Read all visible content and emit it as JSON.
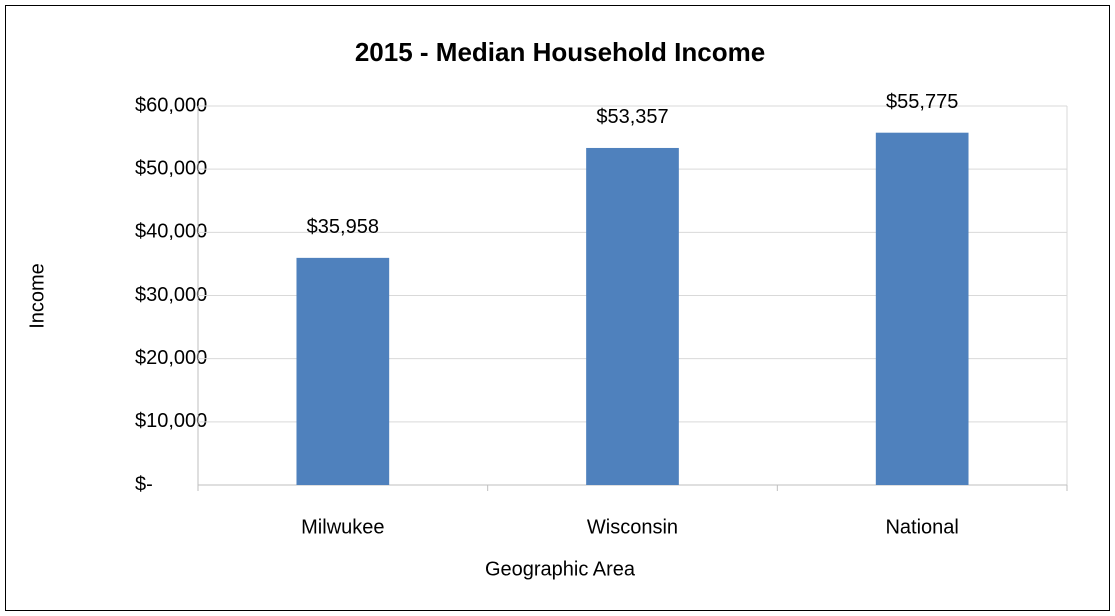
{
  "chart_data": {
    "type": "bar",
    "title": "2015 - Median Household Income",
    "x_label": "Geographic Area",
    "y_label": "Income",
    "categories": [
      "Milwukee",
      "Wisconsin",
      "National"
    ],
    "values": [
      35958,
      53357,
      55775
    ],
    "value_labels": [
      "$35,958",
      "$53,357",
      "$55,775"
    ],
    "color": "#4f81bd",
    "ylim": [
      0,
      60000
    ],
    "yticks": [
      {
        "value": 0,
        "label": "$-"
      },
      {
        "value": 10000,
        "label": "$10,000"
      },
      {
        "value": 20000,
        "label": "$20,000"
      },
      {
        "value": 30000,
        "label": "$30,000"
      },
      {
        "value": 40000,
        "label": "$40,000"
      },
      {
        "value": 50000,
        "label": "$50,000"
      },
      {
        "value": 60000,
        "label": "$60,000"
      }
    ],
    "grid": true
  }
}
